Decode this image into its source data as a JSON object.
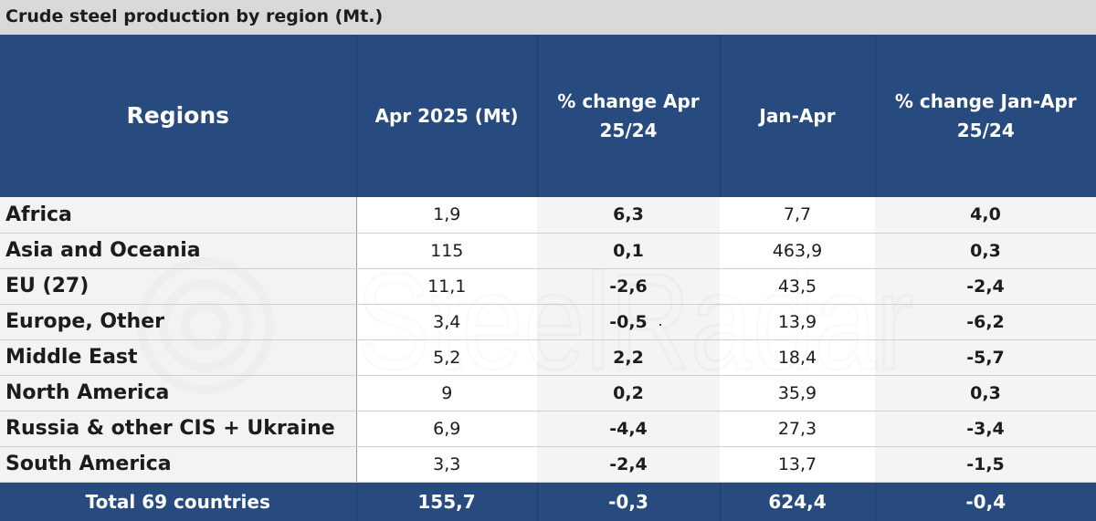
{
  "title": "Crude steel production by region (Mt.)",
  "watermark": "SteelRadar",
  "colors": {
    "header_bg": "#284b7f",
    "title_bg": "#d9d9d9"
  },
  "chart_data": {
    "type": "table",
    "columns": [
      "Regions",
      "Apr 2025 (Mt)",
      "% change Apr 25/24",
      "Jan-Apr",
      "% change Jan-Apr 25/24"
    ],
    "header_lines": [
      [
        "Regions"
      ],
      [
        "Apr 2025 (Mt)"
      ],
      [
        "% change Apr",
        "25/24"
      ],
      [
        "Jan-Apr"
      ],
      [
        "% change Jan-Apr",
        "25/24"
      ]
    ],
    "rows": [
      [
        "Africa",
        "1,9",
        "6,3",
        "7,7",
        "4,0"
      ],
      [
        "Asia and Oceania",
        "115",
        "0,1",
        "463,9",
        "0,3"
      ],
      [
        "EU (27)",
        "11,1",
        "-2,6",
        "43,5",
        "-2,4"
      ],
      [
        "Europe, Other",
        "3,4",
        "-0,5",
        "13,9",
        "-6,2"
      ],
      [
        "Middle East",
        "5,2",
        "2,2",
        "18,4",
        "-5,7"
      ],
      [
        "North America",
        "9",
        "0,2",
        "35,9",
        "0,3"
      ],
      [
        "Russia & other CIS + Ukraine",
        "6,9",
        "-4,4",
        "27,3",
        "-3,4"
      ],
      [
        "South America",
        "3,3",
        "-2,4",
        "13,7",
        "-1,5"
      ]
    ],
    "total": [
      "Total 69 countries",
      "155,7",
      "-0,3",
      "624,4",
      "-0,4"
    ]
  }
}
